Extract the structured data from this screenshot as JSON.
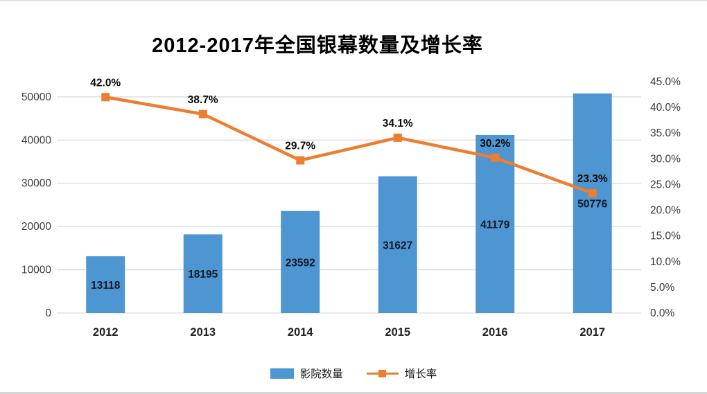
{
  "chart_data": {
    "type": "bar",
    "subtype": "bar-line-combo",
    "title": "2012-2017年全国银幕数量及增长率",
    "categories": [
      "2012",
      "2013",
      "2014",
      "2015",
      "2016",
      "2017"
    ],
    "series": [
      {
        "name": "影院数量",
        "kind": "bar",
        "axis": "left",
        "values": [
          13118,
          18195,
          23592,
          31627,
          41179,
          50776
        ],
        "labels": [
          "13118",
          "18195",
          "23592",
          "31627",
          "41179",
          "50776"
        ],
        "color": "#4E96D1"
      },
      {
        "name": "增长率",
        "kind": "line",
        "axis": "right",
        "values": [
          42.0,
          38.7,
          29.7,
          34.1,
          30.2,
          23.3
        ],
        "labels": [
          "42.0%",
          "38.7%",
          "29.7%",
          "34.1%",
          "30.2%",
          "23.3%"
        ],
        "color": "#ED7D31"
      }
    ],
    "left_axis": {
      "min": 0,
      "max": 53500,
      "tick_step": 10000,
      "tick_labels": [
        "0",
        "10000",
        "20000",
        "30000",
        "40000",
        "50000"
      ]
    },
    "right_axis": {
      "min": 0,
      "max": 45,
      "tick_step": 5,
      "tick_labels": [
        "0.0%",
        "5.0%",
        "10.0%",
        "15.0%",
        "20.0%",
        "25.0%",
        "30.0%",
        "35.0%",
        "40.0%",
        "45.0%"
      ]
    },
    "grid": true,
    "legend_position": "bottom",
    "colors": {
      "bar": "#4E96D1",
      "line": "#ED7D31",
      "grid": "#D9D9D9",
      "text": "#000000",
      "axis_text": "#3B3B3B",
      "background": "#FFFFFF"
    }
  }
}
